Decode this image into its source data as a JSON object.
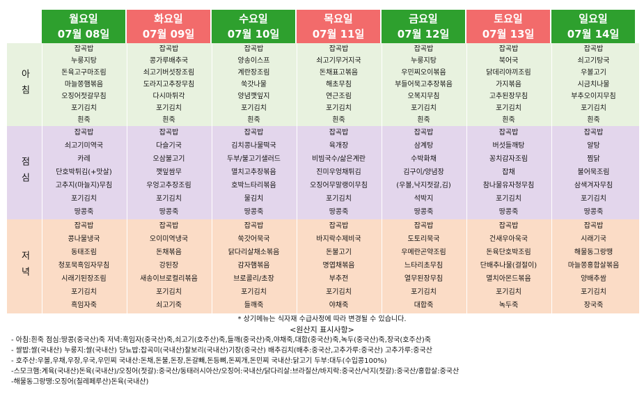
{
  "days": [
    {
      "day": "월요일",
      "date": "07월 08일",
      "color": "green"
    },
    {
      "day": "화요일",
      "date": "07월 09일",
      "color": "red"
    },
    {
      "day": "수요일",
      "date": "07월 10일",
      "color": "green"
    },
    {
      "day": "목요일",
      "date": "07월 11일",
      "color": "red"
    },
    {
      "day": "금요일",
      "date": "07월 12일",
      "color": "green"
    },
    {
      "day": "토요일",
      "date": "07월 13일",
      "color": "red"
    },
    {
      "day": "일요일",
      "date": "07월 14일",
      "color": "green"
    }
  ],
  "meals": [
    {
      "label": "아침",
      "menus": [
        [
          "잡곡밥",
          "누룽지탕",
          "돈육고구마조림",
          "마늘쫑햄볶음",
          "오징어젓갈무침",
          "포기김치",
          "흰죽"
        ],
        [
          "잡곡밥",
          "콩가루배추국",
          "쇠고기버섯장조림",
          "도라지고추장무침",
          "다시마튀각",
          "포기김치",
          "흰죽"
        ],
        [
          "잡곡밥",
          "양송이스프",
          "계란장조림",
          "쑥갓나물",
          "양념깻잎지",
          "포기김치",
          "흰죽"
        ],
        [
          "잡곡밥",
          "쇠고기무거지국",
          "돈채표고볶음",
          "해초무침",
          "연근조림",
          "포기김치",
          "흰죽"
        ],
        [
          "잡곡밥",
          "누룽지탕",
          "우민찌오이볶음",
          "부들어묵고추장볶음",
          "오복지무침",
          "포기김치",
          "흰죽"
        ],
        [
          "잡곡밥",
          "북어국",
          "닭데리야끼조림",
          "가지볶음",
          "고추된장무침",
          "포기김치",
          "흰죽"
        ],
        [
          "잡곡밥",
          "쇠고기탕국",
          "우볼고기",
          "시금치나물",
          "부추오이지무침",
          "포기김치",
          "흰죽"
        ]
      ]
    },
    {
      "label": "점심",
      "menus": [
        [
          "잡곡밥",
          "쇠고기미역국",
          "카레",
          "단호박튀김(+맛살)",
          "고추지(마늘지)무침",
          "포기김치",
          "땅콩죽"
        ],
        [
          "잡곡밥",
          "다슬기국",
          "오삼불고기",
          "깻잎쌈무",
          "우엉고추장조림",
          "포기김치",
          "땅콩죽"
        ],
        [
          "잡곡밥",
          "김치콩나물떡국",
          "두부/불고기샐러드",
          "멸치고추장볶음",
          "호박느타리볶음",
          "물김치",
          "땅콩죽"
        ],
        [
          "잡곡밥",
          "육개장",
          "비빔국수/삶은계란",
          "진미우엉채튀김",
          "오징어무말랭이무침",
          "포기김치",
          "땅콩죽"
        ],
        [
          "잡곡밥",
          "삼계탕",
          "수박화채",
          "김구이/양념장",
          "(우볼,낙지젓갈,김)",
          "석박지",
          "땅콩죽"
        ],
        [
          "잡곡밥",
          "버섯들깨탕",
          "꽁치감자조림",
          "잡채",
          "참나물유자청무침",
          "포기김치",
          "땅콩죽"
        ],
        [
          "잡곡밥",
          "알탕",
          "찜닭",
          "불어묵조림",
          "삼색겨자무침",
          "포기김치",
          "땅콩죽"
        ]
      ]
    },
    {
      "label": "저녁",
      "menus": [
        [
          "잡곡밥",
          "콩나물냉국",
          "동태조림",
          "청포묵흑임자무침",
          "시래기된장조림",
          "포기김치",
          "흑임자죽"
        ],
        [
          "잡곡밥",
          "오이미역냉국",
          "돈채볶음",
          "강된장",
          "새송이브로컬리볶음",
          "포기김치",
          "쇠고기죽"
        ],
        [
          "잡곡밥",
          "쑥갓어묵국",
          "닭다리살채소볶음",
          "감자햄볶음",
          "브로콜리/초장",
          "포기김치",
          "들깨죽"
        ],
        [
          "잡곡밥",
          "바지락수제비국",
          "돈불고기",
          "명엽채볶음",
          "부추전",
          "포기김치",
          "야채죽"
        ],
        [
          "잡곡밥",
          "도토리묵국",
          "우메란곤약조림",
          "느타리초무침",
          "열무된장무침",
          "포기김치",
          "대합죽"
        ],
        [
          "잡곡밥",
          "건새우아욱국",
          "돈육단호박조림",
          "단배추나물(걸절이)",
          "멸치아몬드볶음",
          "포기김치",
          "녹두죽"
        ],
        [
          "잡곡밥",
          "시래기국",
          "해물동그랑땡",
          "마늘쫑홍합살볶음",
          "양배추쌈",
          "포기김치",
          "장국죽"
        ]
      ]
    }
  ],
  "notice": "* 상기메뉴는 식자재 수급사정에 따라 변경될 수 있습니다.",
  "origin_title": "<원산지 표시사항>",
  "origin_lines": [
    "- 아침:흰죽 점심:땅콩(중국산)죽 저녁:흑임자(중국산)죽,쇠고기(호주산)죽,들깨(중국산)죽,야채죽,대합(중국산)죽,녹두(중국산)죽,장국(호주산)죽",
    "- 쌀밥:쌀(국내산) 누룽지:쌀(국내산) 당뇨밥:잡곡미(국내산)찰보리(국내산)기장(중국산) 배추김치(배추:중국산,고추가루:중국산) 고추가루:중국산",
    "- 호주산:우볼,우채,우장,우국,우민찌 국내산:돈채,돈불,돈장,돈갈빼,돈등뼈,돈찌개,돈민찌 국내산:닭고기 두부:대두(수입콩100%)",
    "-스모크햄:계육(국내산)돈육(국내산)/오징어(젓갈):중국산/동태러시아산/오징어:국내산/닭다리살:브라질산/바지락:중국산/낙지(젓갈):중국산/홍합살:중국산",
    "-해물동그랑땡:오징어(칠레페루산)돈육(국내산)"
  ]
}
